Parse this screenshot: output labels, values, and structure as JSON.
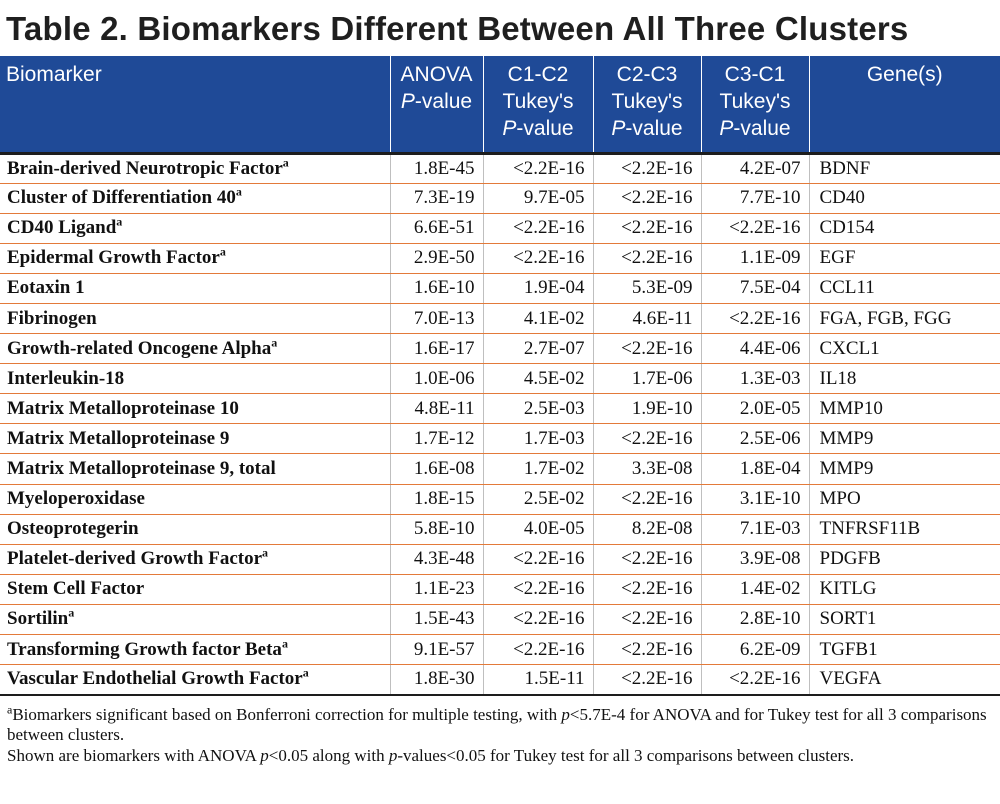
{
  "title": "Table 2. Biomarkers Different Between All Three Clusters",
  "header": {
    "col0": [
      "Biomarker"
    ],
    "col1": [
      "ANOVA",
      "P-value"
    ],
    "col2": [
      "C1-C2",
      "Tukey's",
      "P-value"
    ],
    "col3": [
      "C2-C3",
      "Tukey's",
      "P-value"
    ],
    "col4": [
      "C3-C1",
      "Tukey's",
      "P-value"
    ],
    "col5": [
      "Gene(s)"
    ]
  },
  "rows": [
    {
      "name": "Brain-derived Neurotropic Factor",
      "sup": "a",
      "anova": "1.8E-45",
      "c1c2": "<2.2E-16",
      "c2c3": "<2.2E-16",
      "c3c1": "4.2E-07",
      "gene": "BDNF"
    },
    {
      "name": "Cluster of Differentiation 40",
      "sup": "a",
      "anova": "7.3E-19",
      "c1c2": "9.7E-05",
      "c2c3": "<2.2E-16",
      "c3c1": "7.7E-10",
      "gene": "CD40"
    },
    {
      "name": "CD40 Ligand",
      "sup": "a",
      "anova": "6.6E-51",
      "c1c2": "<2.2E-16",
      "c2c3": "<2.2E-16",
      "c3c1": "<2.2E-16",
      "gene": "CD154"
    },
    {
      "name": "Epidermal Growth Factor",
      "sup": "a",
      "anova": "2.9E-50",
      "c1c2": "<2.2E-16",
      "c2c3": "<2.2E-16",
      "c3c1": "1.1E-09",
      "gene": "EGF"
    },
    {
      "name": "Eotaxin 1",
      "sup": "",
      "anova": "1.6E-10",
      "c1c2": "1.9E-04",
      "c2c3": "5.3E-09",
      "c3c1": "7.5E-04",
      "gene": "CCL11"
    },
    {
      "name": "Fibrinogen",
      "sup": "",
      "anova": "7.0E-13",
      "c1c2": "4.1E-02",
      "c2c3": "4.6E-11",
      "c3c1": "<2.2E-16",
      "gene": "FGA, FGB, FGG"
    },
    {
      "name": "Growth-related Oncogene Alpha",
      "sup": "a",
      "anova": "1.6E-17",
      "c1c2": "2.7E-07",
      "c2c3": "<2.2E-16",
      "c3c1": "4.4E-06",
      "gene": "CXCL1"
    },
    {
      "name": "Interleukin-18",
      "sup": "",
      "anova": "1.0E-06",
      "c1c2": "4.5E-02",
      "c2c3": "1.7E-06",
      "c3c1": "1.3E-03",
      "gene": "IL18"
    },
    {
      "name": "Matrix Metalloproteinase 10",
      "sup": "",
      "anova": "4.8E-11",
      "c1c2": "2.5E-03",
      "c2c3": "1.9E-10",
      "c3c1": "2.0E-05",
      "gene": "MMP10"
    },
    {
      "name": "Matrix Metalloproteinase 9",
      "sup": "",
      "anova": "1.7E-12",
      "c1c2": "1.7E-03",
      "c2c3": "<2.2E-16",
      "c3c1": "2.5E-06",
      "gene": "MMP9"
    },
    {
      "name": "Matrix Metalloproteinase 9, total",
      "sup": "",
      "anova": "1.6E-08",
      "c1c2": "1.7E-02",
      "c2c3": "3.3E-08",
      "c3c1": "1.8E-04",
      "gene": "MMP9"
    },
    {
      "name": "Myeloperoxidase",
      "sup": "",
      "anova": "1.8E-15",
      "c1c2": "2.5E-02",
      "c2c3": "<2.2E-16",
      "c3c1": "3.1E-10",
      "gene": "MPO"
    },
    {
      "name": "Osteoprotegerin",
      "sup": "",
      "anova": "5.8E-10",
      "c1c2": "4.0E-05",
      "c2c3": "8.2E-08",
      "c3c1": "7.1E-03",
      "gene": "TNFRSF11B"
    },
    {
      "name": "Platelet-derived Growth Factor",
      "sup": "a",
      "anova": "4.3E-48",
      "c1c2": "<2.2E-16",
      "c2c3": "<2.2E-16",
      "c3c1": "3.9E-08",
      "gene": "PDGFB"
    },
    {
      "name": "Stem Cell Factor",
      "sup": "",
      "anova": "1.1E-23",
      "c1c2": "<2.2E-16",
      "c2c3": "<2.2E-16",
      "c3c1": "1.4E-02",
      "gene": "KITLG"
    },
    {
      "name": "Sortilin",
      "sup": "a",
      "anova": "1.5E-43",
      "c1c2": "<2.2E-16",
      "c2c3": "<2.2E-16",
      "c3c1": "2.8E-10",
      "gene": "SORT1"
    },
    {
      "name": "Transforming Growth factor Beta",
      "sup": "a",
      "anova": "9.1E-57",
      "c1c2": "<2.2E-16",
      "c2c3": "<2.2E-16",
      "c3c1": "6.2E-09",
      "gene": "TGFB1"
    },
    {
      "name": "Vascular Endothelial Growth Factor",
      "sup": "a",
      "anova": "1.8E-30",
      "c1c2": "1.5E-11",
      "c2c3": "<2.2E-16",
      "c3c1": "<2.2E-16",
      "gene": "VEGFA"
    }
  ],
  "footnotes": {
    "note1_sup": "a",
    "note1_a": "Biomarkers significant based on Bonferroni correction for multiple testing, with ",
    "note1_p": "p",
    "note1_b": "<5.7E-4 for ANOVA and for Tukey test for all 3 comparisons between clusters.",
    "note2_a": "Shown are biomarkers with ANOVA ",
    "note2_p1": "p",
    "note2_b": "<0.05 along with ",
    "note2_p2": "p",
    "note2_c": "-values<0.05 for Tukey test for all 3 comparisons between clusters."
  },
  "colors": {
    "header_bg": "#1f4a97",
    "row_rule": "#e37a3a",
    "title_text": "#1f1f1f"
  }
}
